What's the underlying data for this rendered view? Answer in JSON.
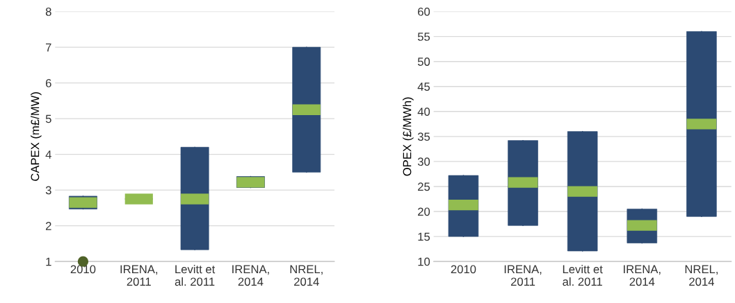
{
  "chart_data": [
    {
      "type": "box",
      "ylabel": "CAPEX (m£/MW)",
      "categories": [
        "2010",
        "IRENA,\n2011",
        "Levitt et\nal. 2011",
        "IRENA,\n2014",
        "NREL,\n2014"
      ],
      "ylim": [
        1,
        8
      ],
      "yticks": [
        1,
        2,
        3,
        4,
        5,
        6,
        7,
        8
      ],
      "grid": "y",
      "series": [
        {
          "color": "#2c4a73",
          "boxes": [
            {
              "low": 2.47,
              "q1": 2.47,
              "median": 2.65,
              "q3": 2.83,
              "high": 2.83,
              "outliers": [
                1.0
              ]
            },
            {
              "low": 2.75,
              "q1": 2.75,
              "median": 2.75,
              "q3": 2.75,
              "high": 2.75
            },
            {
              "low": 1.33,
              "q1": 1.33,
              "median": 2.75,
              "q3": 4.2,
              "high": 4.2
            },
            {
              "low": 3.07,
              "q1": 3.07,
              "median": 3.22,
              "q3": 3.38,
              "high": 3.38
            },
            {
              "low": 3.5,
              "q1": 3.5,
              "median": 5.25,
              "q3": 7.0,
              "high": 7.0
            }
          ]
        }
      ]
    },
    {
      "type": "box",
      "ylabel": "OPEX (£/MWh)",
      "categories": [
        "2010",
        "IRENA,\n2011",
        "Levitt et\nal. 2011",
        "IRENA,\n2014",
        "NREL,\n2014"
      ],
      "ylim": [
        10,
        60
      ],
      "yticks": [
        10,
        15,
        20,
        25,
        30,
        35,
        40,
        45,
        50,
        55,
        60
      ],
      "grid": "y",
      "series": [
        {
          "color": "#2c4a73",
          "boxes": [
            {
              "low": 15,
              "q1": 15,
              "median": 21.3,
              "q3": 27.2,
              "high": 27.2
            },
            {
              "low": 17.2,
              "q1": 17.2,
              "median": 25.8,
              "q3": 34.2,
              "high": 34.2
            },
            {
              "low": 12.1,
              "q1": 12.1,
              "median": 24,
              "q3": 36,
              "high": 36
            },
            {
              "low": 13.7,
              "q1": 13.7,
              "median": 17.2,
              "q3": 20.5,
              "high": 20.5
            },
            {
              "low": 19,
              "q1": 19,
              "median": 37.5,
              "q3": 56,
              "high": 56
            }
          ]
        }
      ]
    }
  ]
}
